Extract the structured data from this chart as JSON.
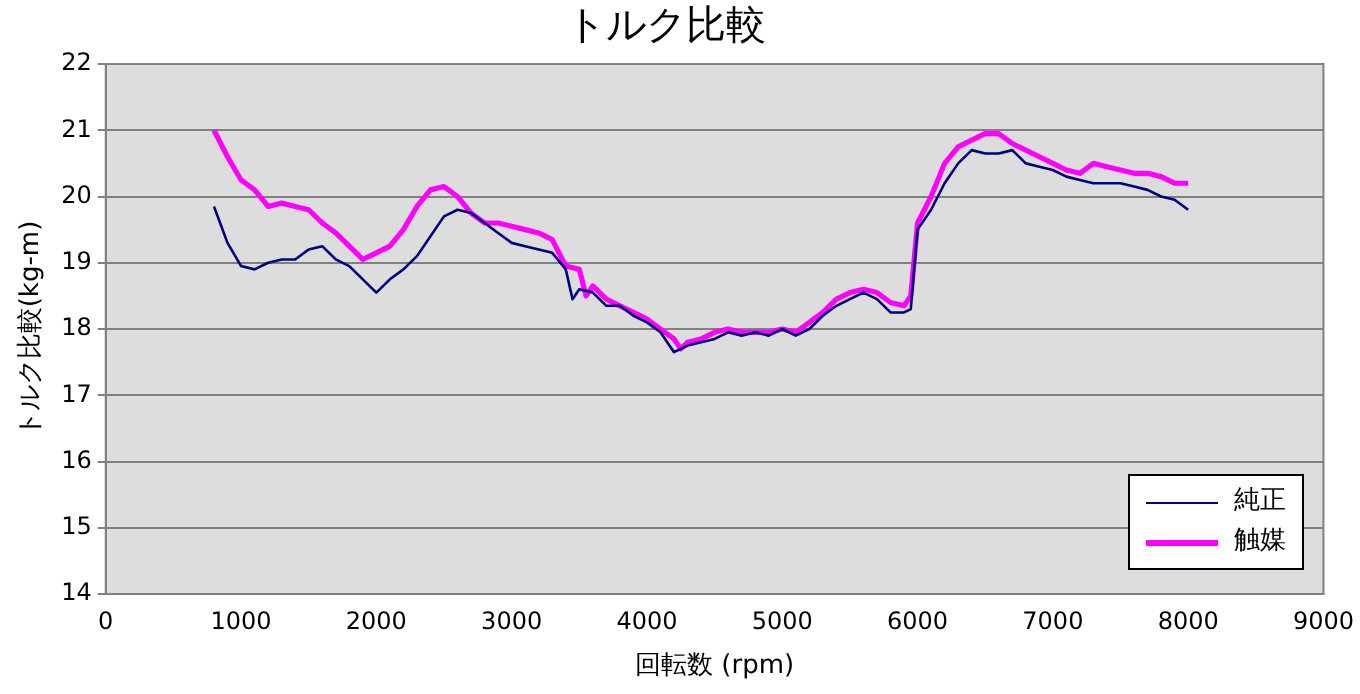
{
  "chart_data": {
    "type": "line",
    "title": "トルク比較",
    "xlabel": "回転数 (rpm)",
    "ylabel": "トルク比較(kg-m)",
    "xlim": [
      0,
      9000
    ],
    "xticks": [
      0,
      1000,
      2000,
      3000,
      4000,
      5000,
      6000,
      7000,
      8000,
      9000
    ],
    "ylim": [
      14,
      22
    ],
    "yticks": [
      14,
      15,
      16,
      17,
      18,
      19,
      20,
      21,
      22
    ],
    "grid": "y",
    "legend": "bottom right",
    "marker": "none",
    "line_style": "solid",
    "series": [
      {
        "name": "純正",
        "color": "#000080",
        "x": [
          800,
          900,
          1000,
          1100,
          1200,
          1300,
          1400,
          1500,
          1600,
          1700,
          1800,
          1900,
          2000,
          2100,
          2200,
          2300,
          2400,
          2500,
          2600,
          2700,
          2800,
          2900,
          3000,
          3100,
          3200,
          3300,
          3400,
          3450,
          3500,
          3600,
          3700,
          3800,
          3900,
          4000,
          4100,
          4200,
          4300,
          4400,
          4500,
          4600,
          4700,
          4800,
          4900,
          5000,
          5100,
          5200,
          5300,
          5400,
          5500,
          5600,
          5700,
          5800,
          5900,
          5950,
          6000,
          6100,
          6200,
          6300,
          6400,
          6500,
          6600,
          6700,
          6800,
          6900,
          7000,
          7100,
          7200,
          7300,
          7400,
          7500,
          7600,
          7700,
          7800,
          7900,
          8000
        ],
        "values": [
          19.85,
          19.3,
          18.95,
          18.9,
          19.0,
          19.05,
          19.05,
          19.2,
          19.25,
          19.05,
          18.95,
          18.75,
          18.55,
          18.75,
          18.9,
          19.1,
          19.4,
          19.7,
          19.8,
          19.75,
          19.6,
          19.45,
          19.3,
          19.25,
          19.2,
          19.15,
          18.9,
          18.45,
          18.6,
          18.55,
          18.35,
          18.35,
          18.2,
          18.1,
          17.95,
          17.65,
          17.75,
          17.8,
          17.85,
          17.95,
          17.9,
          17.95,
          17.9,
          18.0,
          17.9,
          18.0,
          18.2,
          18.35,
          18.45,
          18.55,
          18.45,
          18.25,
          18.25,
          18.3,
          19.5,
          19.8,
          20.2,
          20.5,
          20.7,
          20.65,
          20.65,
          20.7,
          20.5,
          20.45,
          20.4,
          20.3,
          20.25,
          20.2,
          20.2,
          20.2,
          20.15,
          20.1,
          20.0,
          19.95,
          19.8
        ]
      },
      {
        "name": "触媒",
        "color": "#ff00ff",
        "x": [
          800,
          900,
          1000,
          1100,
          1200,
          1300,
          1400,
          1500,
          1600,
          1700,
          1800,
          1900,
          2000,
          2100,
          2200,
          2300,
          2400,
          2500,
          2600,
          2700,
          2800,
          2900,
          3000,
          3100,
          3200,
          3300,
          3400,
          3500,
          3550,
          3600,
          3700,
          3800,
          3900,
          4000,
          4100,
          4200,
          4250,
          4300,
          4400,
          4500,
          4600,
          4700,
          4800,
          4900,
          5000,
          5100,
          5200,
          5300,
          5400,
          5500,
          5600,
          5700,
          5800,
          5900,
          5950,
          6000,
          6100,
          6200,
          6300,
          6400,
          6500,
          6600,
          6700,
          6800,
          6900,
          7000,
          7100,
          7200,
          7300,
          7400,
          7500,
          7600,
          7700,
          7800,
          7900,
          8000
        ],
        "values": [
          21.0,
          20.6,
          20.25,
          20.1,
          19.85,
          19.9,
          19.85,
          19.8,
          19.6,
          19.45,
          19.25,
          19.05,
          19.15,
          19.25,
          19.5,
          19.85,
          20.1,
          20.15,
          20.0,
          19.75,
          19.6,
          19.6,
          19.55,
          19.5,
          19.45,
          19.35,
          18.95,
          18.9,
          18.5,
          18.65,
          18.45,
          18.35,
          18.25,
          18.15,
          18.0,
          17.85,
          17.7,
          17.8,
          17.85,
          17.95,
          18.0,
          17.95,
          17.95,
          17.95,
          18.0,
          17.95,
          18.1,
          18.25,
          18.45,
          18.55,
          18.6,
          18.55,
          18.4,
          18.35,
          18.5,
          19.6,
          20.0,
          20.5,
          20.75,
          20.85,
          20.95,
          20.95,
          20.8,
          20.7,
          20.6,
          20.5,
          20.4,
          20.35,
          20.5,
          20.45,
          20.4,
          20.35,
          20.35,
          20.3,
          20.2,
          20.2
        ]
      }
    ]
  }
}
